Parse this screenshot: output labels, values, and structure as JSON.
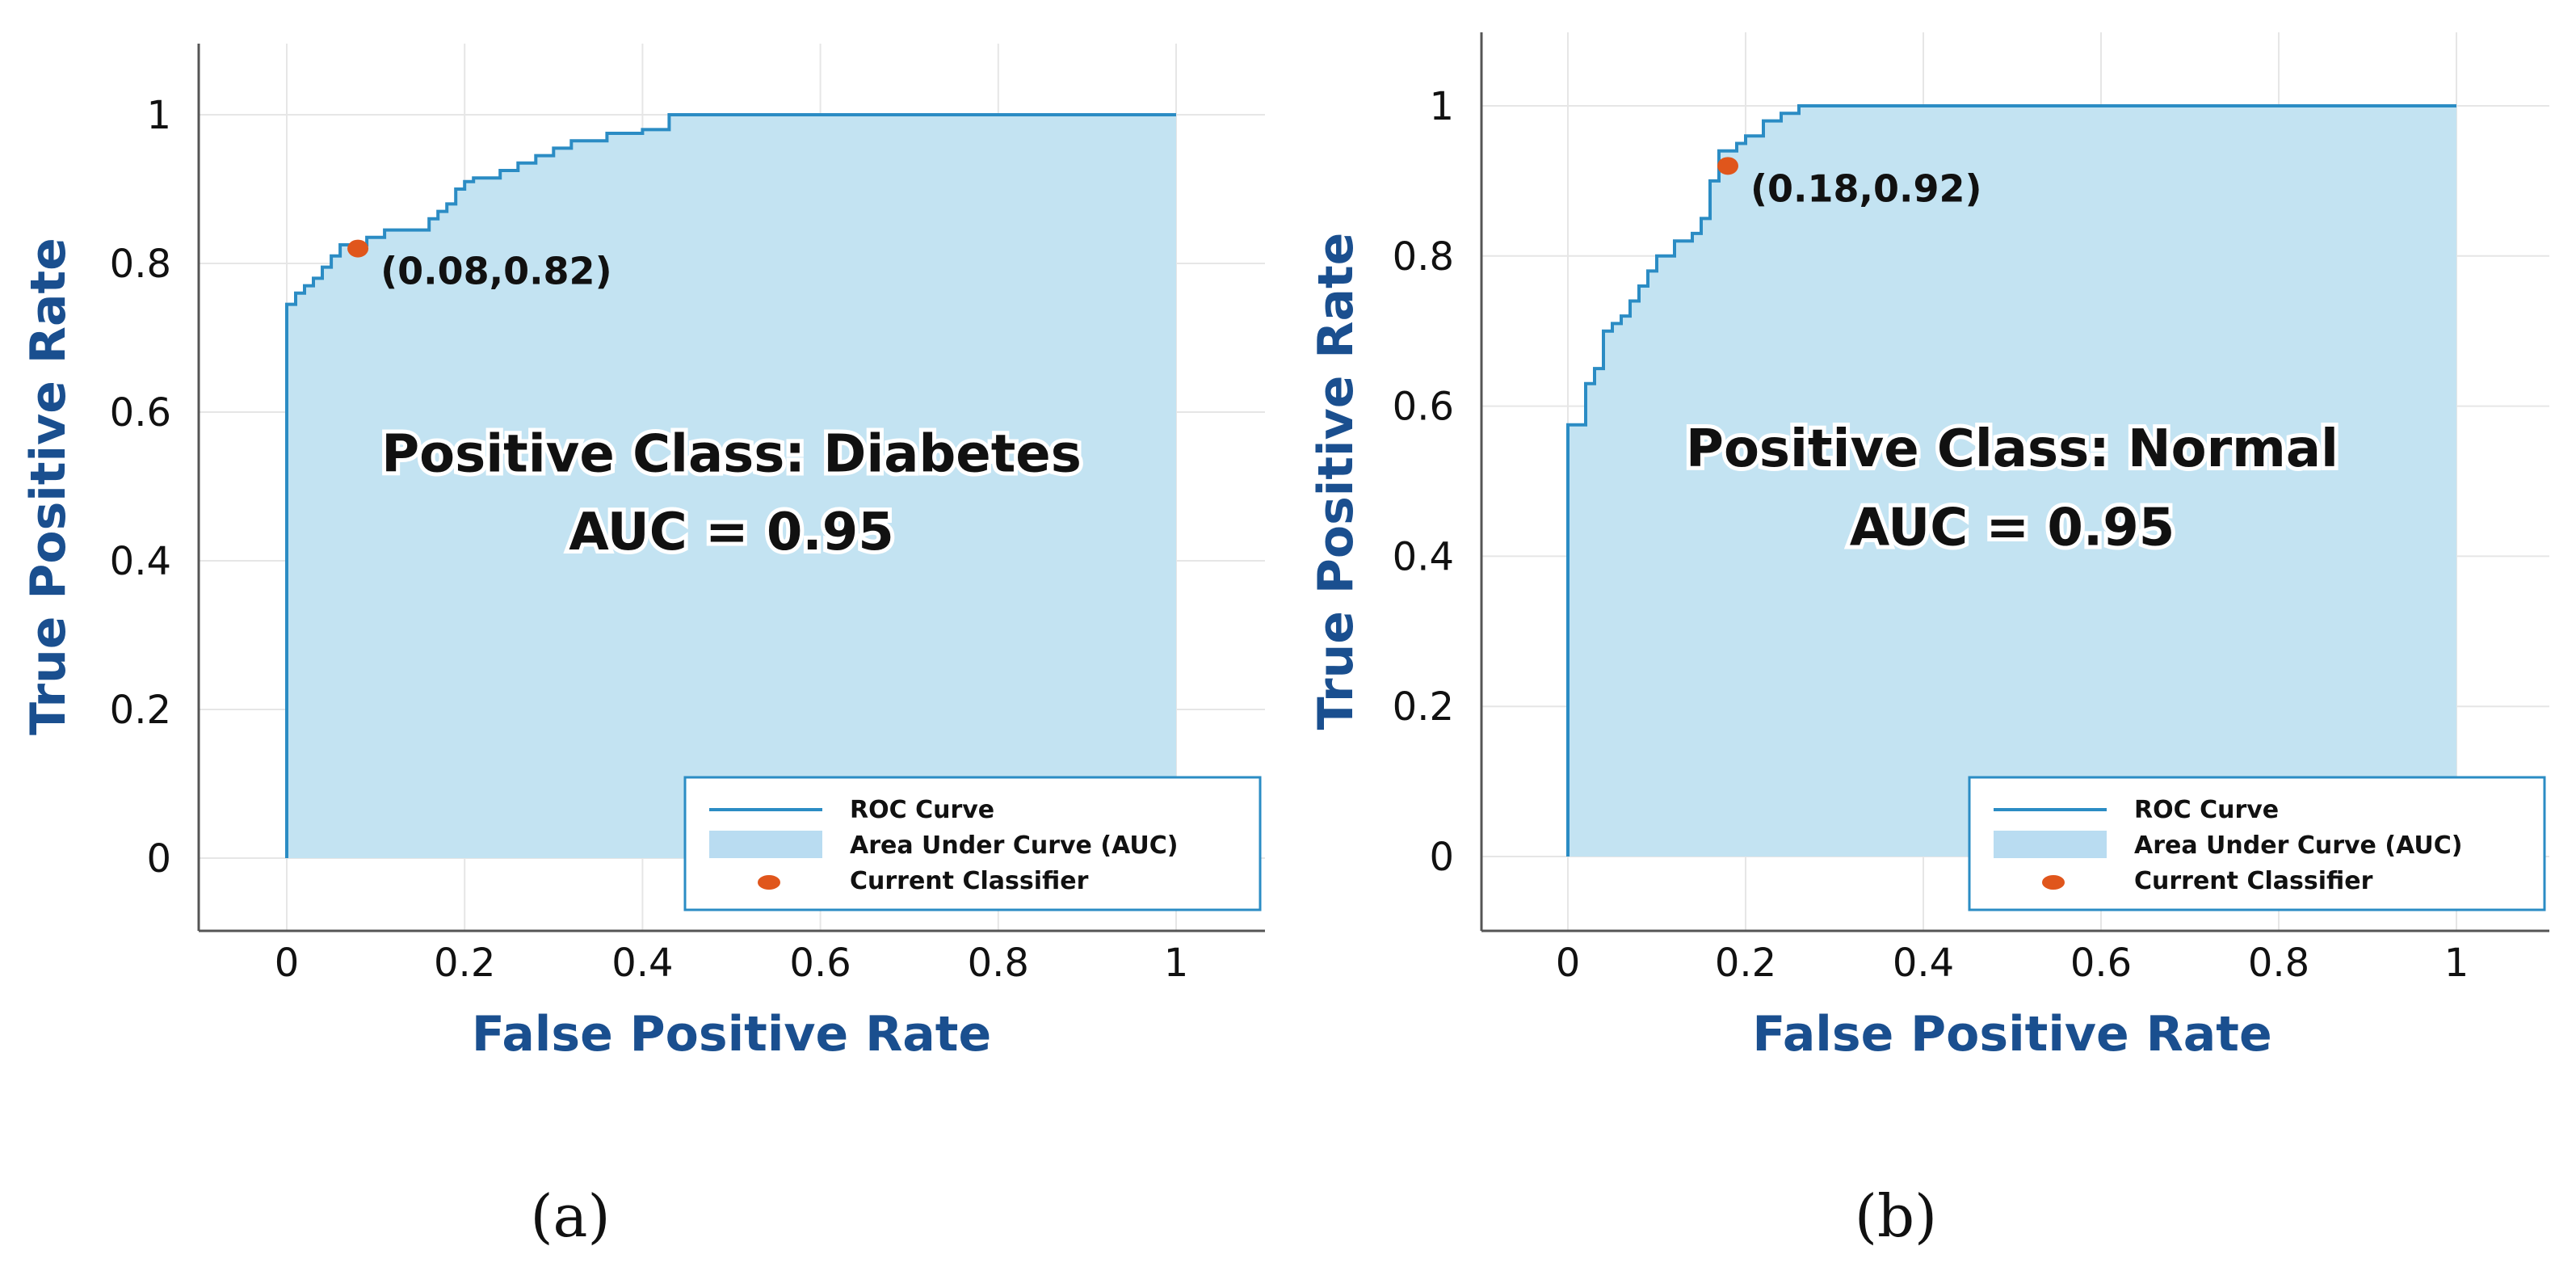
{
  "chart_data": [
    {
      "type": "line",
      "panel_label": "(a)",
      "xlabel": "False Positive Rate",
      "ylabel": "True Positive Rate",
      "xlim": [
        -0.1,
        1.1
      ],
      "ylim": [
        -0.1,
        1.1
      ],
      "x_ticks": [
        0,
        0.2,
        0.4,
        0.6,
        0.8,
        1
      ],
      "y_ticks": [
        0,
        0.2,
        0.4,
        0.6,
        0.8,
        1
      ],
      "x_tick_labels": [
        "0",
        "0.2",
        "0.4",
        "0.6",
        "0.8",
        "1"
      ],
      "y_tick_labels": [
        "0",
        "0.2",
        "0.4",
        "0.6",
        "0.8",
        "1"
      ],
      "grid": true,
      "center_text": [
        "Positive Class: Diabetes",
        "AUC = 0.95"
      ],
      "auc": 0.95,
      "positive_class": "Diabetes",
      "current_classifier": {
        "x": 0.08,
        "y": 0.82,
        "label": "(0.08,0.82)"
      },
      "legend_position": "bottom-right",
      "legend": [
        {
          "type": "line",
          "label": "ROC Curve"
        },
        {
          "type": "area",
          "label": "Area Under Curve (AUC)"
        },
        {
          "type": "marker",
          "label": "Current Classifier"
        }
      ],
      "roc_curve": {
        "x": [
          0,
          0,
          0.01,
          0.01,
          0.02,
          0.02,
          0.03,
          0.03,
          0.04,
          0.04,
          0.05,
          0.05,
          0.06,
          0.06,
          0.09,
          0.09,
          0.11,
          0.11,
          0.16,
          0.16,
          0.17,
          0.17,
          0.18,
          0.18,
          0.19,
          0.19,
          0.2,
          0.2,
          0.21,
          0.21,
          0.24,
          0.24,
          0.26,
          0.26,
          0.28,
          0.28,
          0.3,
          0.3,
          0.32,
          0.32,
          0.36,
          0.36,
          0.4,
          0.4,
          0.43,
          0.43,
          1
        ],
        "y": [
          0,
          0.745,
          0.745,
          0.76,
          0.76,
          0.77,
          0.77,
          0.78,
          0.78,
          0.795,
          0.795,
          0.81,
          0.81,
          0.825,
          0.825,
          0.835,
          0.835,
          0.845,
          0.845,
          0.86,
          0.86,
          0.87,
          0.87,
          0.88,
          0.88,
          0.9,
          0.9,
          0.91,
          0.91,
          0.915,
          0.915,
          0.925,
          0.925,
          0.935,
          0.935,
          0.945,
          0.945,
          0.955,
          0.955,
          0.965,
          0.965,
          0.975,
          0.975,
          0.98,
          0.98,
          1.0,
          1.0
        ]
      }
    },
    {
      "type": "line",
      "panel_label": "(b)",
      "xlabel": "False Positive Rate",
      "ylabel": "True Positive Rate",
      "xlim": [
        -0.1,
        1.1
      ],
      "ylim": [
        -0.1,
        1.1
      ],
      "x_ticks": [
        0,
        0.2,
        0.4,
        0.6,
        0.8,
        1
      ],
      "y_ticks": [
        0,
        0.2,
        0.4,
        0.6,
        0.8,
        1
      ],
      "x_tick_labels": [
        "0",
        "0.2",
        "0.4",
        "0.6",
        "0.8",
        "1"
      ],
      "y_tick_labels": [
        "0",
        "0.2",
        "0.4",
        "0.6",
        "0.8",
        "1"
      ],
      "grid": true,
      "center_text": [
        "Positive Class: Normal",
        "AUC = 0.95"
      ],
      "auc": 0.95,
      "positive_class": "Normal",
      "current_classifier": {
        "x": 0.18,
        "y": 0.92,
        "label": "(0.18,0.92)"
      },
      "legend_position": "bottom-right",
      "legend": [
        {
          "type": "line",
          "label": "ROC Curve"
        },
        {
          "type": "area",
          "label": "Area Under Curve (AUC)"
        },
        {
          "type": "marker",
          "label": "Current Classifier"
        }
      ],
      "roc_curve": {
        "x": [
          0,
          0,
          0.02,
          0.02,
          0.03,
          0.03,
          0.04,
          0.04,
          0.05,
          0.05,
          0.06,
          0.06,
          0.07,
          0.07,
          0.08,
          0.08,
          0.09,
          0.09,
          0.1,
          0.1,
          0.12,
          0.12,
          0.14,
          0.14,
          0.15,
          0.15,
          0.16,
          0.16,
          0.17,
          0.17,
          0.19,
          0.19,
          0.2,
          0.2,
          0.22,
          0.22,
          0.24,
          0.24,
          0.26,
          0.26,
          1
        ],
        "y": [
          0,
          0.575,
          0.575,
          0.63,
          0.63,
          0.65,
          0.65,
          0.7,
          0.7,
          0.71,
          0.71,
          0.72,
          0.72,
          0.74,
          0.74,
          0.76,
          0.76,
          0.78,
          0.78,
          0.8,
          0.8,
          0.82,
          0.82,
          0.83,
          0.83,
          0.85,
          0.85,
          0.9,
          0.9,
          0.94,
          0.94,
          0.95,
          0.95,
          0.96,
          0.96,
          0.98,
          0.98,
          0.99,
          0.99,
          1.0,
          1.0
        ]
      }
    }
  ]
}
